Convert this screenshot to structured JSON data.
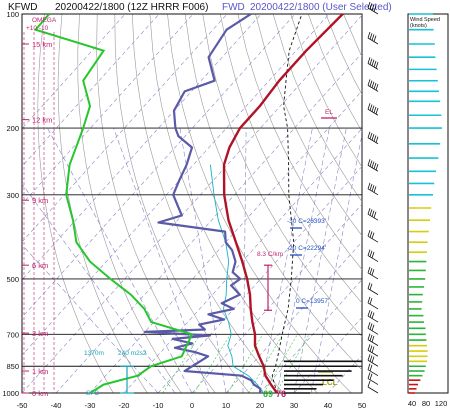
{
  "header": {
    "station": "KFWD",
    "run": "20200422/1800  (12Z  HRRR  F006)",
    "fwd_label": "FWD",
    "selected": "20200422/1800  (User Selected)"
  },
  "colors": {
    "temperature": "#b01226",
    "dewpoint": "#5a5aa8",
    "wetbulb": "#18b2c4",
    "parcel": "#111111",
    "omega": "#26c62c",
    "magenta": "#c0226e",
    "dry_adiabat": "#9a9a9a",
    "moist_adiabat": "#8686c6",
    "isotherm": "#8686c6",
    "wind_cyan": "#16c2d6",
    "wind_yellow": "#d8cc10",
    "wind_red": "#cc1010",
    "wind_green": "#2bb43a"
  },
  "annotations": {
    "omega_title": "OMEGA",
    "omega_scale": "+10    -10",
    "el_label": "EL",
    "lcl_label": "LCL",
    "lapse_rate": "8.3 C/km",
    "iso_m30": "-30 C=26393'",
    "iso_m20": "-20 C=22294'",
    "iso_0": "0 C=13957'",
    "srh_depth": "1370m",
    "srh_value": "240 m2s2",
    "sfc_label": "SFC",
    "sfc_td": "69",
    "sfc_t": "76"
  },
  "wind_panel": {
    "title": "Wind Speed",
    "units": "(knots)",
    "ticks": [
      "40",
      "80",
      "120"
    ]
  },
  "chart_data": {
    "type": "skew-t",
    "y_scale": "log pressure",
    "ylim": [
      1000,
      100
    ],
    "xlim": [
      -50,
      50
    ],
    "pressure_ticks": [
      100,
      200,
      300,
      500,
      700,
      850,
      1000
    ],
    "temp_ticks": [
      -50,
      -40,
      -30,
      -20,
      -10,
      0,
      10,
      20,
      30,
      40,
      50
    ],
    "height_markers": [
      {
        "label": "0 km",
        "p": 1000
      },
      {
        "label": "1 km",
        "p": 875
      },
      {
        "label": "3 km",
        "p": 695
      },
      {
        "label": "6 km",
        "p": 460
      },
      {
        "label": "9 km",
        "p": 310
      },
      {
        "label": "12 km",
        "p": 190
      },
      {
        "label": "15 km",
        "p": 120
      }
    ],
    "temperature": [
      [
        1000,
        25
      ],
      [
        950,
        21
      ],
      [
        900,
        17
      ],
      [
        850,
        14
      ],
      [
        800,
        10
      ],
      [
        750,
        6
      ],
      [
        700,
        3
      ],
      [
        650,
        -1
      ],
      [
        600,
        -5
      ],
      [
        550,
        -9
      ],
      [
        500,
        -14
      ],
      [
        450,
        -20
      ],
      [
        400,
        -27
      ],
      [
        350,
        -35
      ],
      [
        300,
        -43
      ],
      [
        250,
        -51
      ],
      [
        225,
        -54
      ],
      [
        200,
        -56
      ],
      [
        175,
        -56
      ],
      [
        150,
        -57
      ],
      [
        125,
        -57
      ],
      [
        100,
        -56
      ]
    ],
    "dewpoint": [
      [
        1000,
        20
      ],
      [
        975,
        19
      ],
      [
        950,
        16
      ],
      [
        925,
        14
      ],
      [
        900,
        10
      ],
      [
        875,
        -8
      ],
      [
        850,
        -7
      ],
      [
        800,
        -5
      ],
      [
        780,
        -10
      ],
      [
        760,
        -17
      ],
      [
        740,
        -13
      ],
      [
        720,
        -20
      ],
      [
        705,
        -10
      ],
      [
        690,
        -30
      ],
      [
        680,
        -13
      ],
      [
        660,
        -16
      ],
      [
        640,
        -10
      ],
      [
        620,
        -16
      ],
      [
        600,
        -10
      ],
      [
        580,
        -15
      ],
      [
        550,
        -12
      ],
      [
        520,
        -17
      ],
      [
        500,
        -16
      ],
      [
        480,
        -20
      ],
      [
        450,
        -22
      ],
      [
        420,
        -26
      ],
      [
        400,
        -30
      ],
      [
        375,
        -33
      ],
      [
        355,
        -55
      ],
      [
        340,
        -50
      ],
      [
        300,
        -58
      ],
      [
        275,
        -60
      ],
      [
        250,
        -62
      ],
      [
        225,
        -65
      ],
      [
        210,
        -72
      ],
      [
        200,
        -75
      ],
      [
        180,
        -80
      ],
      [
        160,
        -82
      ],
      [
        150,
        -76
      ],
      [
        130,
        -84
      ],
      [
        110,
        -86
      ],
      [
        100,
        -83
      ]
    ],
    "wetbulb": [
      [
        1000,
        21
      ],
      [
        950,
        17
      ],
      [
        900,
        12
      ],
      [
        850,
        5
      ],
      [
        800,
        2
      ],
      [
        750,
        -2
      ],
      [
        700,
        -4
      ],
      [
        650,
        -8
      ],
      [
        600,
        -13
      ],
      [
        550,
        -16
      ],
      [
        500,
        -20
      ],
      [
        450,
        -24
      ],
      [
        400,
        -30
      ],
      [
        350,
        -38
      ],
      [
        300,
        -46
      ],
      [
        250,
        -55
      ]
    ],
    "parcel": [
      [
        1000,
        25
      ],
      [
        900,
        19
      ],
      [
        850,
        17.5
      ],
      [
        800,
        15.5
      ],
      [
        700,
        11
      ],
      [
        600,
        6
      ],
      [
        500,
        -1
      ],
      [
        400,
        -10
      ],
      [
        300,
        -24
      ],
      [
        250,
        -32
      ],
      [
        200,
        -42
      ],
      [
        175,
        -49
      ],
      [
        150,
        -55
      ],
      [
        125,
        -62
      ],
      [
        100,
        -68
      ]
    ],
    "omega": [
      [
        1000,
        -30
      ],
      [
        950,
        -26
      ],
      [
        900,
        -16
      ],
      [
        850,
        -12
      ],
      [
        800,
        -3
      ],
      [
        700,
        0
      ],
      [
        650,
        -12
      ],
      [
        600,
        -14
      ],
      [
        550,
        -18
      ],
      [
        500,
        -24
      ],
      [
        450,
        -30
      ],
      [
        400,
        -34
      ],
      [
        350,
        -35
      ],
      [
        300,
        -37
      ],
      [
        250,
        -36
      ],
      [
        200,
        -32
      ],
      [
        175,
        -30
      ],
      [
        150,
        -32
      ],
      [
        125,
        -26
      ],
      [
        110,
        -46
      ],
      [
        100,
        -42
      ]
    ],
    "lapse_rate_layer": [
      460,
      605
    ],
    "srh_layer": [
      850,
      1000
    ],
    "freezing_levels": [
      {
        "label": "-30 C=26393'",
        "p": 365
      },
      {
        "label": "-20 C=22294'",
        "p": 435
      },
      {
        "label": "0 C=13957'",
        "p": 610
      }
    ],
    "el_pressure": 190,
    "lcl_pressure": 955,
    "wind_speeds": [
      {
        "p": 1000,
        "kt": 20
      },
      {
        "p": 975,
        "kt": 25
      },
      {
        "p": 950,
        "kt": 30
      },
      {
        "p": 925,
        "kt": 38
      },
      {
        "p": 900,
        "kt": 45
      },
      {
        "p": 875,
        "kt": 52
      },
      {
        "p": 850,
        "kt": 56
      },
      {
        "p": 825,
        "kt": 60
      },
      {
        "p": 800,
        "kt": 62
      },
      {
        "p": 775,
        "kt": 62
      },
      {
        "p": 750,
        "kt": 60
      },
      {
        "p": 725,
        "kt": 58
      },
      {
        "p": 700,
        "kt": 56
      },
      {
        "p": 675,
        "kt": 55
      },
      {
        "p": 650,
        "kt": 50
      },
      {
        "p": 625,
        "kt": 48
      },
      {
        "p": 600,
        "kt": 42
      },
      {
        "p": 575,
        "kt": 44
      },
      {
        "p": 550,
        "kt": 46
      },
      {
        "p": 525,
        "kt": 50
      },
      {
        "p": 500,
        "kt": 54
      },
      {
        "p": 475,
        "kt": 56
      },
      {
        "p": 450,
        "kt": 58
      },
      {
        "p": 425,
        "kt": 60
      },
      {
        "p": 400,
        "kt": 62
      },
      {
        "p": 375,
        "kt": 66
      },
      {
        "p": 350,
        "kt": 70
      },
      {
        "p": 325,
        "kt": 74
      },
      {
        "p": 300,
        "kt": 80
      },
      {
        "p": 280,
        "kt": 84
      },
      {
        "p": 260,
        "kt": 90
      },
      {
        "p": 240,
        "kt": 98
      },
      {
        "p": 220,
        "kt": 104
      },
      {
        "p": 200,
        "kt": 110
      },
      {
        "p": 185,
        "kt": 108
      },
      {
        "p": 170,
        "kt": 104
      },
      {
        "p": 160,
        "kt": 100
      },
      {
        "p": 150,
        "kt": 96
      },
      {
        "p": 140,
        "kt": 92
      },
      {
        "p": 130,
        "kt": 88
      },
      {
        "p": 120,
        "kt": 86
      },
      {
        "p": 110,
        "kt": 82
      },
      {
        "p": 100,
        "kt": 80
      }
    ]
  }
}
